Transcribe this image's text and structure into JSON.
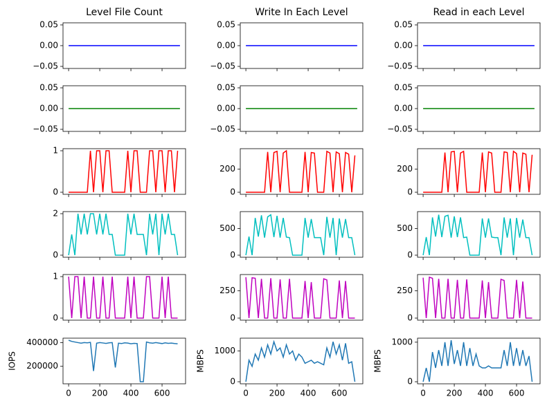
{
  "chart_data": [
    {
      "type": "line",
      "title": "Level File Count",
      "x": [
        0,
        715
      ],
      "values": [
        0,
        0
      ],
      "color": "#0000ff",
      "xlim": [
        -36,
        751
      ],
      "xticks": [
        0,
        200,
        400,
        600
      ],
      "ylim": [
        -0.055,
        0.055
      ],
      "yticks": [
        {
          "value": -0.05,
          "label": "−0.05"
        },
        {
          "value": 0,
          "label": "0.00"
        },
        {
          "value": 0.05,
          "label": "0.05"
        }
      ]
    },
    {
      "type": "line",
      "title": "Write In Each Level",
      "x": [
        0,
        715
      ],
      "values": [
        0,
        0
      ],
      "color": "#0000ff",
      "xlim": [
        -36,
        751
      ],
      "xticks": [
        0,
        200,
        400,
        600
      ],
      "ylim": [
        -0.055,
        0.055
      ],
      "yticks": [
        {
          "value": -0.05,
          "label": "−0.05"
        },
        {
          "value": 0,
          "label": "0.00"
        },
        {
          "value": 0.05,
          "label": "0.05"
        }
      ]
    },
    {
      "type": "line",
      "title": "Read in each Level",
      "x": [
        0,
        715
      ],
      "values": [
        0,
        0
      ],
      "color": "#0000ff",
      "xlim": [
        -36,
        751
      ],
      "xticks": [
        0,
        200,
        400,
        600
      ],
      "ylim": [
        -0.055,
        0.055
      ],
      "yticks": [
        {
          "value": -0.05,
          "label": "−0.05"
        },
        {
          "value": 0,
          "label": "0.00"
        },
        {
          "value": 0.05,
          "label": "0.05"
        }
      ]
    },
    {
      "type": "line",
      "x": [
        0,
        715
      ],
      "values": [
        0,
        0
      ],
      "color": "#008000",
      "xlim": [
        -36,
        751
      ],
      "xticks": [
        0,
        200,
        400,
        600
      ],
      "ylim": [
        -0.055,
        0.055
      ],
      "yticks": [
        {
          "value": -0.05,
          "label": "−0.05"
        },
        {
          "value": 0,
          "label": "0.00"
        },
        {
          "value": 0.05,
          "label": "0.05"
        }
      ]
    },
    {
      "type": "line",
      "x": [
        0,
        715
      ],
      "values": [
        0,
        0
      ],
      "color": "#008000",
      "xlim": [
        -36,
        751
      ],
      "xticks": [
        0,
        200,
        400,
        600
      ],
      "ylim": [
        -0.055,
        0.055
      ],
      "yticks": [
        {
          "value": -0.05,
          "label": "−0.05"
        },
        {
          "value": 0,
          "label": "0.00"
        },
        {
          "value": 0.05,
          "label": "0.05"
        }
      ]
    },
    {
      "type": "line",
      "x": [
        0,
        715
      ],
      "values": [
        0,
        0
      ],
      "color": "#008000",
      "xlim": [
        -36,
        751
      ],
      "xticks": [
        0,
        200,
        400,
        600
      ],
      "ylim": [
        -0.055,
        0.055
      ],
      "yticks": [
        {
          "value": -0.05,
          "label": "−0.05"
        },
        {
          "value": 0,
          "label": "0.00"
        },
        {
          "value": 0.05,
          "label": "0.05"
        }
      ]
    },
    {
      "type": "line",
      "x": [
        0,
        20,
        40,
        60,
        80,
        100,
        120,
        140,
        160,
        180,
        200,
        220,
        240,
        260,
        280,
        300,
        320,
        340,
        360,
        380,
        400,
        420,
        440,
        460,
        480,
        500,
        520,
        540,
        560,
        580,
        600,
        620,
        640,
        660,
        680,
        700
      ],
      "values": [
        0,
        0,
        0,
        0,
        0,
        0,
        0,
        1,
        0,
        1,
        1,
        0,
        1,
        1,
        0,
        0,
        0,
        0,
        0,
        1,
        0,
        1,
        1,
        0,
        0,
        0,
        1,
        1,
        0,
        1,
        1,
        0,
        1,
        1,
        0,
        1
      ],
      "color": "#ff0000",
      "xlim": [
        -36,
        751
      ],
      "xticks": [
        0,
        200,
        400,
        600
      ],
      "ylim": [
        -0.05,
        1.05
      ],
      "yticks": [
        0,
        1
      ]
    },
    {
      "type": "line",
      "x": [
        0,
        20,
        40,
        60,
        80,
        100,
        120,
        140,
        160,
        180,
        200,
        220,
        240,
        260,
        280,
        300,
        320,
        340,
        360,
        380,
        400,
        420,
        440,
        460,
        480,
        500,
        520,
        540,
        560,
        580,
        600,
        620,
        640,
        660,
        680,
        700
      ],
      "values": [
        0,
        0,
        0,
        0,
        0,
        0,
        0,
        350,
        0,
        345,
        355,
        0,
        340,
        360,
        0,
        0,
        0,
        0,
        0,
        350,
        0,
        345,
        340,
        0,
        0,
        0,
        355,
        340,
        0,
        350,
        335,
        0,
        345,
        330,
        0,
        320
      ],
      "color": "#ff0000",
      "xlim": [
        -36,
        751
      ],
      "xticks": [
        0,
        200,
        400,
        600
      ],
      "ylim": [
        -18,
        378
      ],
      "yticks": [
        0,
        200
      ]
    },
    {
      "type": "line",
      "x": [
        0,
        20,
        40,
        60,
        80,
        100,
        120,
        140,
        160,
        180,
        200,
        220,
        240,
        260,
        280,
        300,
        320,
        340,
        360,
        380,
        400,
        420,
        440,
        460,
        480,
        500,
        520,
        540,
        560,
        580,
        600,
        620,
        640,
        660,
        680,
        700
      ],
      "values": [
        0,
        0,
        0,
        0,
        0,
        0,
        0,
        345,
        0,
        350,
        355,
        0,
        340,
        355,
        0,
        0,
        0,
        0,
        0,
        345,
        0,
        350,
        340,
        0,
        0,
        0,
        350,
        345,
        0,
        355,
        335,
        0,
        340,
        330,
        0,
        325
      ],
      "color": "#ff0000",
      "xlim": [
        -36,
        751
      ],
      "xticks": [
        0,
        200,
        400,
        600
      ],
      "ylim": [
        -18,
        378
      ],
      "yticks": [
        0,
        200
      ]
    },
    {
      "type": "line",
      "x": [
        0,
        20,
        40,
        60,
        80,
        100,
        120,
        140,
        160,
        180,
        200,
        220,
        240,
        260,
        280,
        300,
        320,
        340,
        360,
        380,
        400,
        420,
        440,
        460,
        480,
        500,
        520,
        540,
        560,
        580,
        600,
        620,
        640,
        660,
        680,
        700
      ],
      "values": [
        0,
        1,
        0,
        2,
        1,
        2,
        1,
        2,
        2,
        1,
        2,
        1,
        2,
        1,
        1,
        0,
        0,
        0,
        0,
        2,
        1,
        2,
        1,
        1,
        1,
        0,
        2,
        1,
        2,
        0,
        2,
        1,
        2,
        1,
        1,
        0
      ],
      "color": "#00bfbf",
      "xlim": [
        -36,
        751
      ],
      "xticks": [
        0,
        200,
        400,
        600
      ],
      "ylim": [
        -0.1,
        2.1
      ],
      "yticks": [
        0,
        2
      ]
    },
    {
      "type": "line",
      "x": [
        0,
        20,
        40,
        60,
        80,
        100,
        120,
        140,
        160,
        180,
        200,
        220,
        240,
        260,
        280,
        300,
        320,
        340,
        360,
        380,
        400,
        420,
        440,
        460,
        480,
        500,
        520,
        540,
        560,
        580,
        600,
        620,
        640,
        660,
        680,
        700
      ],
      "values": [
        0,
        350,
        0,
        700,
        350,
        750,
        330,
        720,
        760,
        340,
        740,
        330,
        700,
        340,
        330,
        0,
        0,
        0,
        0,
        700,
        330,
        680,
        330,
        330,
        330,
        0,
        720,
        330,
        700,
        0,
        690,
        330,
        680,
        330,
        330,
        0
      ],
      "color": "#00bfbf",
      "xlim": [
        -36,
        751
      ],
      "xticks": [
        0,
        200,
        400,
        600
      ],
      "ylim": [
        -39,
        819
      ],
      "yticks": [
        0,
        500
      ]
    },
    {
      "type": "line",
      "x": [
        0,
        20,
        40,
        60,
        80,
        100,
        120,
        140,
        160,
        180,
        200,
        220,
        240,
        260,
        280,
        300,
        320,
        340,
        360,
        380,
        400,
        420,
        440,
        460,
        480,
        500,
        520,
        540,
        560,
        580,
        600,
        620,
        640,
        660,
        680,
        700
      ],
      "values": [
        0,
        340,
        0,
        710,
        350,
        760,
        340,
        730,
        750,
        330,
        730,
        340,
        710,
        330,
        340,
        0,
        0,
        0,
        0,
        690,
        330,
        690,
        340,
        330,
        330,
        0,
        710,
        330,
        690,
        0,
        700,
        330,
        670,
        330,
        330,
        0
      ],
      "color": "#00bfbf",
      "xlim": [
        -36,
        751
      ],
      "xticks": [
        0,
        200,
        400,
        600
      ],
      "ylim": [
        -39,
        819
      ],
      "yticks": [
        0,
        500
      ]
    },
    {
      "type": "line",
      "x": [
        0,
        20,
        40,
        60,
        80,
        100,
        120,
        140,
        160,
        180,
        200,
        220,
        240,
        260,
        280,
        300,
        320,
        340,
        360,
        380,
        400,
        420,
        440,
        460,
        480,
        500,
        520,
        540,
        560,
        580,
        600,
        620,
        640,
        660,
        680,
        700
      ],
      "values": [
        1,
        0,
        1,
        1,
        0,
        1,
        0,
        0,
        1,
        0,
        0,
        1,
        0,
        0,
        1,
        0,
        0,
        0,
        0,
        1,
        0,
        1,
        0,
        0,
        0,
        1,
        1,
        0,
        0,
        0,
        1,
        0,
        1,
        0,
        0,
        0
      ],
      "color": "#bf00bf",
      "xlim": [
        -36,
        751
      ],
      "xticks": [
        0,
        200,
        400,
        600
      ],
      "ylim": [
        -0.05,
        1.05
      ],
      "yticks": [
        0,
        1
      ]
    },
    {
      "type": "line",
      "x": [
        0,
        20,
        40,
        60,
        80,
        100,
        120,
        140,
        160,
        180,
        200,
        220,
        240,
        260,
        280,
        300,
        320,
        340,
        360,
        380,
        400,
        420,
        440,
        460,
        480,
        500,
        520,
        540,
        560,
        580,
        600,
        620,
        640,
        660,
        680,
        700
      ],
      "values": [
        375,
        0,
        370,
        365,
        0,
        360,
        0,
        0,
        365,
        0,
        0,
        355,
        0,
        0,
        360,
        0,
        0,
        0,
        0,
        340,
        0,
        330,
        0,
        0,
        0,
        360,
        350,
        0,
        0,
        0,
        345,
        0,
        340,
        0,
        0,
        0
      ],
      "color": "#bf00bf",
      "xlim": [
        -36,
        751
      ],
      "xticks": [
        0,
        200,
        400,
        600
      ],
      "ylim": [
        -19,
        399
      ],
      "yticks": [
        0,
        250
      ]
    },
    {
      "type": "line",
      "x": [
        0,
        20,
        40,
        60,
        80,
        100,
        120,
        140,
        160,
        180,
        200,
        220,
        240,
        260,
        280,
        300,
        320,
        340,
        360,
        380,
        400,
        420,
        440,
        460,
        480,
        500,
        520,
        540,
        560,
        580,
        600,
        620,
        640,
        660,
        680,
        700
      ],
      "values": [
        370,
        0,
        375,
        365,
        0,
        360,
        0,
        0,
        360,
        0,
        0,
        350,
        0,
        0,
        355,
        0,
        0,
        0,
        0,
        345,
        0,
        330,
        0,
        0,
        0,
        355,
        345,
        0,
        0,
        0,
        350,
        0,
        335,
        0,
        0,
        0
      ],
      "color": "#bf00bf",
      "xlim": [
        -36,
        751
      ],
      "xticks": [
        0,
        200,
        400,
        600
      ],
      "ylim": [
        -19,
        399
      ],
      "yticks": [
        0,
        250
      ]
    },
    {
      "type": "line",
      "ylabel": "IOPS",
      "x": [
        0,
        20,
        40,
        60,
        80,
        100,
        120,
        140,
        160,
        180,
        200,
        220,
        240,
        260,
        280,
        300,
        320,
        340,
        360,
        380,
        400,
        420,
        440,
        460,
        480,
        500,
        520,
        540,
        560,
        580,
        600,
        620,
        640,
        660,
        680,
        700
      ],
      "values": [
        420000,
        410000,
        405000,
        400000,
        395000,
        400000,
        398000,
        402000,
        160000,
        395000,
        400000,
        397000,
        393000,
        398000,
        400000,
        190000,
        395000,
        392000,
        398000,
        396000,
        390000,
        394000,
        392000,
        70000,
        70000,
        405000,
        398000,
        395000,
        400000,
        396000,
        392000,
        398000,
        394000,
        396000,
        392000,
        390000
      ],
      "color": "#1f77b4",
      "xlim": [
        -36,
        751
      ],
      "xticks": [
        0,
        200,
        400,
        600
      ],
      "ylim": [
        52500,
        437500
      ],
      "yticks": [
        200000,
        400000
      ]
    },
    {
      "type": "line",
      "ylabel": "MBPS",
      "x": [
        0,
        20,
        40,
        60,
        80,
        100,
        120,
        140,
        160,
        180,
        200,
        220,
        240,
        260,
        280,
        300,
        320,
        340,
        360,
        380,
        400,
        420,
        440,
        460,
        480,
        500,
        520,
        540,
        560,
        580,
        600,
        620,
        640,
        660,
        680,
        700
      ],
      "values": [
        0,
        700,
        500,
        900,
        700,
        1100,
        800,
        1200,
        900,
        1300,
        1000,
        1100,
        800,
        1200,
        900,
        1000,
        700,
        900,
        800,
        600,
        650,
        700,
        600,
        650,
        600,
        550,
        1100,
        800,
        1300,
        900,
        1200,
        700,
        1250,
        600,
        650,
        0
      ],
      "color": "#1f77b4",
      "xlim": [
        -36,
        751
      ],
      "xticks": [
        0,
        200,
        400,
        600
      ],
      "ylim": [
        -67,
        1417
      ],
      "yticks": [
        0,
        1000
      ]
    },
    {
      "type": "line",
      "ylabel": "MBPS",
      "x": [
        0,
        20,
        40,
        60,
        80,
        100,
        120,
        140,
        160,
        180,
        200,
        220,
        240,
        260,
        280,
        300,
        320,
        340,
        360,
        380,
        400,
        420,
        440,
        460,
        480,
        500,
        520,
        540,
        560,
        580,
        600,
        620,
        640,
        660,
        680,
        700
      ],
      "values": [
        0,
        350,
        0,
        750,
        350,
        800,
        400,
        1000,
        400,
        1050,
        450,
        800,
        400,
        1000,
        400,
        850,
        400,
        700,
        400,
        350,
        350,
        400,
        350,
        350,
        350,
        350,
        800,
        400,
        1000,
        400,
        850,
        400,
        800,
        400,
        650,
        0
      ],
      "color": "#1f77b4",
      "xlim": [
        -36,
        751
      ],
      "xticks": [
        0,
        200,
        400,
        600
      ],
      "ylim": [
        -52,
        1102
      ],
      "yticks": [
        0,
        1000
      ]
    }
  ]
}
